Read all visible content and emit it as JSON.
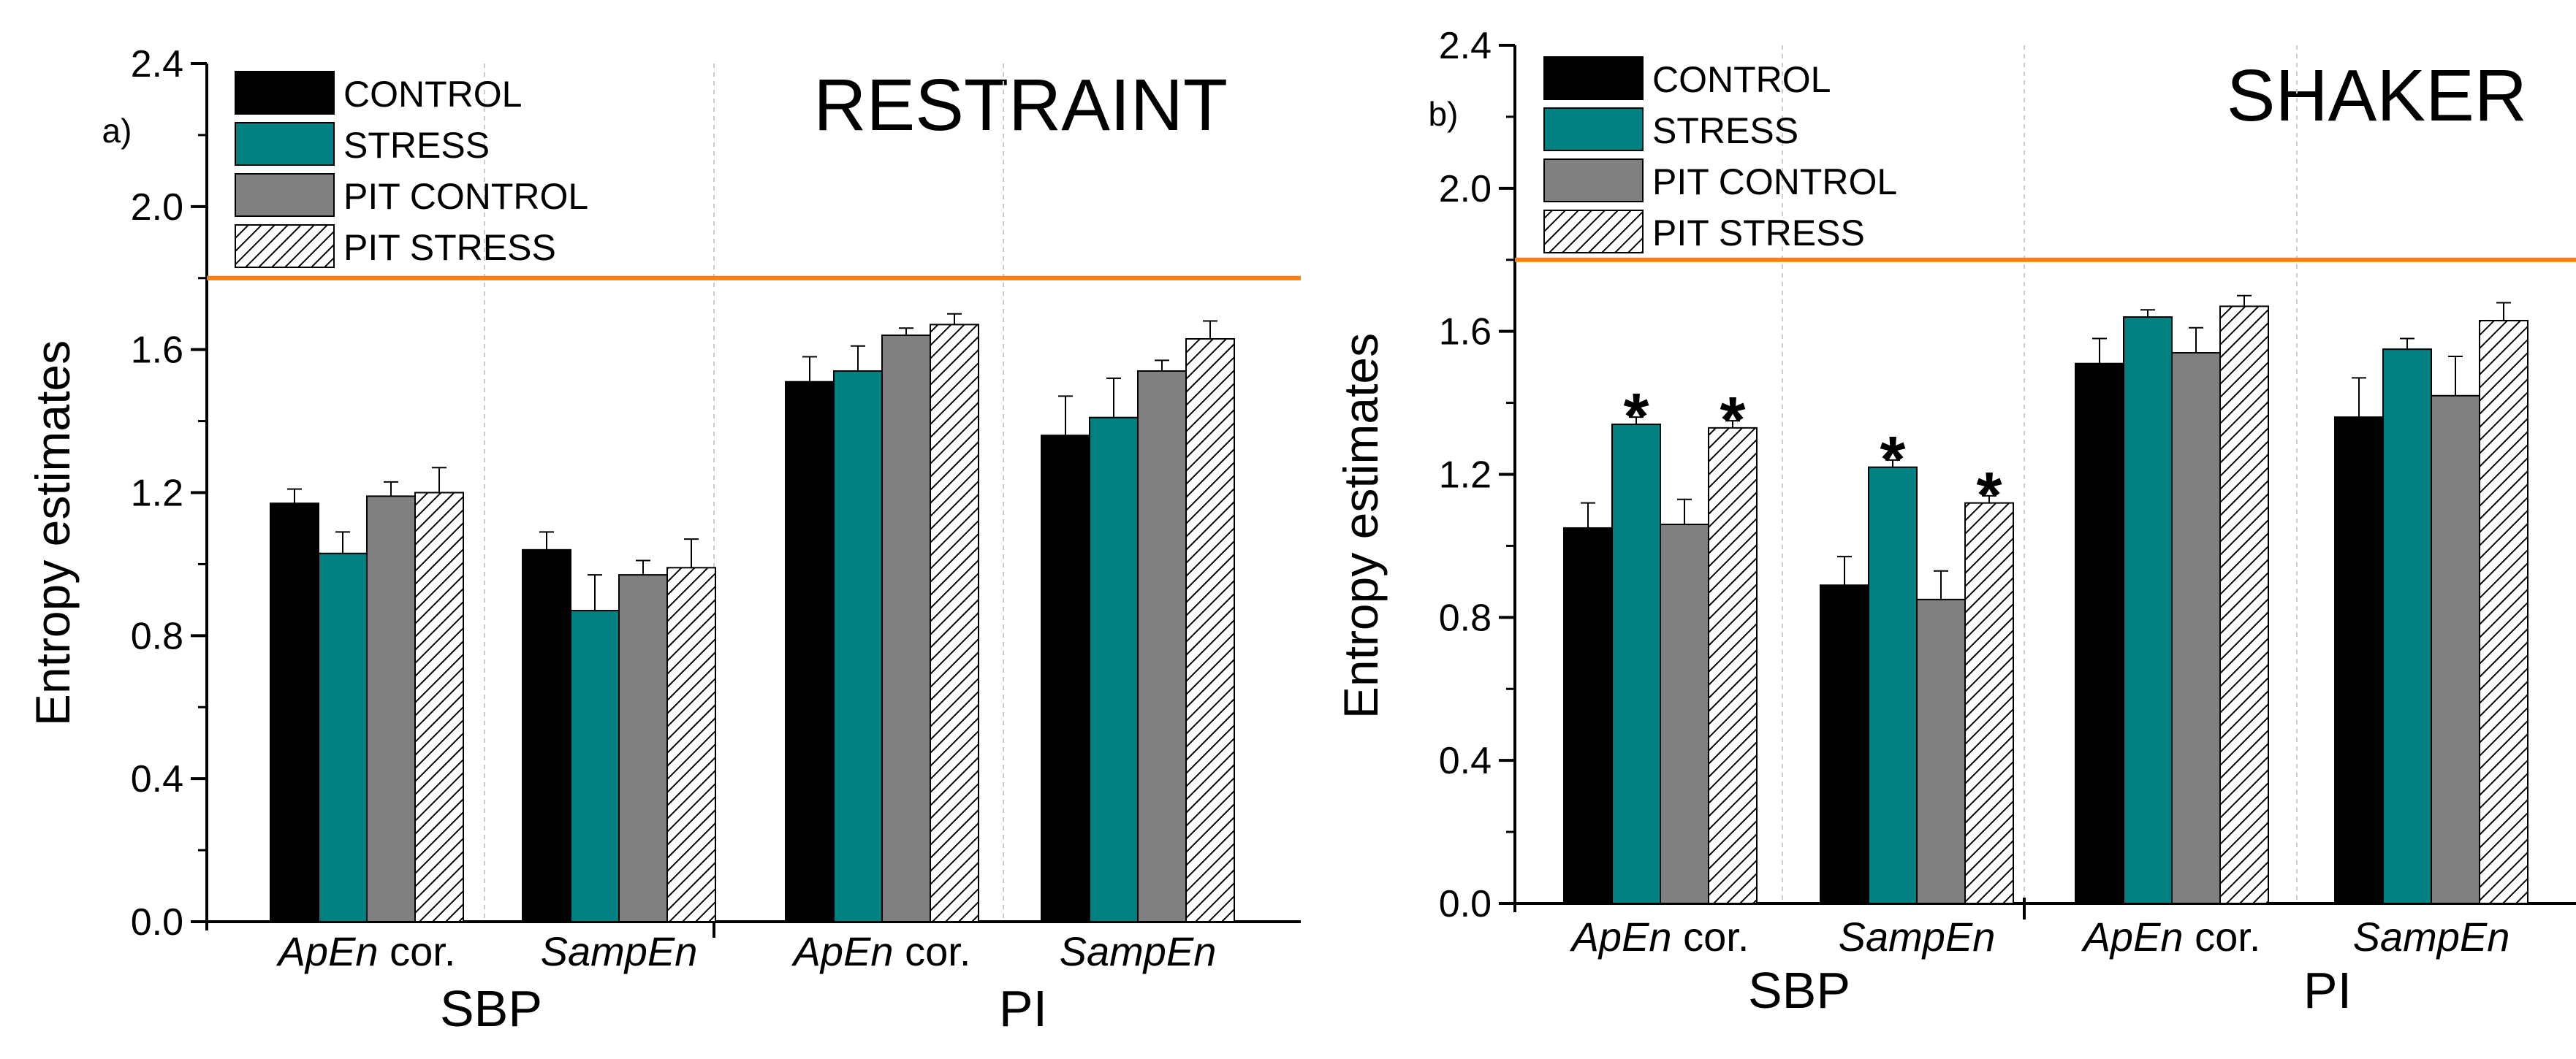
{
  "chart_data": [
    {
      "type": "bar",
      "panel_label": "a)",
      "title": "RESTRAINT",
      "ylabel": "Entropy estimates",
      "ylim": [
        0,
        2.4
      ],
      "yticks": [
        "0.0",
        "0.4",
        "0.8",
        "1.2",
        "1.6",
        "2.0",
        "2.4"
      ],
      "reference_line": {
        "y": 1.8,
        "color": "#ff7f0e"
      },
      "groups": [
        {
          "label": "SBP",
          "categories": [
            "ApEn cor.",
            "SampEn"
          ]
        },
        {
          "label": "PI",
          "categories": [
            "ApEn cor.",
            "SampEn"
          ]
        }
      ],
      "category_parts": [
        {
          "italic": "ApEn",
          "rest": " cor."
        },
        {
          "italic": "SampEn",
          "rest": ""
        },
        {
          "italic": "ApEn",
          "rest": " cor."
        },
        {
          "italic": "SampEn",
          "rest": ""
        }
      ],
      "series": [
        {
          "name": "CONTROL",
          "color": "#000000",
          "pattern": "solid",
          "values": [
            1.17,
            1.04,
            1.51,
            1.36
          ],
          "errors": [
            0.04,
            0.05,
            0.07,
            0.11
          ]
        },
        {
          "name": "STRESS",
          "color": "#008080",
          "pattern": "solid",
          "values": [
            1.03,
            0.87,
            1.54,
            1.41
          ],
          "errors": [
            0.06,
            0.1,
            0.07,
            0.11
          ]
        },
        {
          "name": "PIT CONTROL",
          "color": "#808080",
          "pattern": "solid",
          "values": [
            1.19,
            0.97,
            1.64,
            1.54
          ],
          "errors": [
            0.04,
            0.04,
            0.02,
            0.03
          ]
        },
        {
          "name": "PIT STRESS",
          "color": "#ffffff",
          "pattern": "hatch",
          "values": [
            1.2,
            0.99,
            1.67,
            1.63
          ],
          "errors": [
            0.07,
            0.08,
            0.03,
            0.05
          ]
        }
      ],
      "significance": [
        [
          false,
          false,
          false,
          false
        ],
        [
          false,
          false,
          false,
          false
        ],
        [
          false,
          false,
          false,
          false
        ],
        [
          false,
          false,
          false,
          false
        ]
      ],
      "significance_mark": "*"
    },
    {
      "type": "bar",
      "panel_label": "b)",
      "title": "SHAKER",
      "ylabel": "Entropy estimates",
      "ylim": [
        0,
        2.4
      ],
      "yticks": [
        "0.0",
        "0.4",
        "0.8",
        "1.2",
        "1.6",
        "2.0",
        "2.4"
      ],
      "reference_line": {
        "y": 1.8,
        "color": "#ff7f0e"
      },
      "groups": [
        {
          "label": "SBP",
          "categories": [
            "ApEn cor.",
            "SampEn"
          ]
        },
        {
          "label": "PI",
          "categories": [
            "ApEn cor.",
            "SampEn"
          ]
        }
      ],
      "category_parts": [
        {
          "italic": "ApEn",
          "rest": " cor."
        },
        {
          "italic": "SampEn",
          "rest": ""
        },
        {
          "italic": "ApEn",
          "rest": " cor."
        },
        {
          "italic": "SampEn",
          "rest": ""
        }
      ],
      "series": [
        {
          "name": "CONTROL",
          "color": "#000000",
          "pattern": "solid",
          "values": [
            1.05,
            0.89,
            1.51,
            1.36
          ],
          "errors": [
            0.07,
            0.08,
            0.07,
            0.11
          ]
        },
        {
          "name": "STRESS",
          "color": "#008080",
          "pattern": "solid",
          "values": [
            1.34,
            1.22,
            1.64,
            1.55
          ],
          "errors": [
            0.02,
            0.02,
            0.02,
            0.03
          ]
        },
        {
          "name": "PIT CONTROL",
          "color": "#808080",
          "pattern": "solid",
          "values": [
            1.06,
            0.85,
            1.54,
            1.42
          ],
          "errors": [
            0.07,
            0.08,
            0.07,
            0.11
          ]
        },
        {
          "name": "PIT STRESS",
          "color": "#ffffff",
          "pattern": "hatch",
          "values": [
            1.33,
            1.12,
            1.67,
            1.63
          ],
          "errors": [
            0.02,
            0.02,
            0.03,
            0.05
          ]
        }
      ],
      "significance": [
        [
          false,
          false,
          false,
          false
        ],
        [
          true,
          true,
          false,
          false
        ],
        [
          false,
          false,
          false,
          false
        ],
        [
          true,
          true,
          false,
          false
        ]
      ],
      "significance_mark": "*"
    }
  ]
}
